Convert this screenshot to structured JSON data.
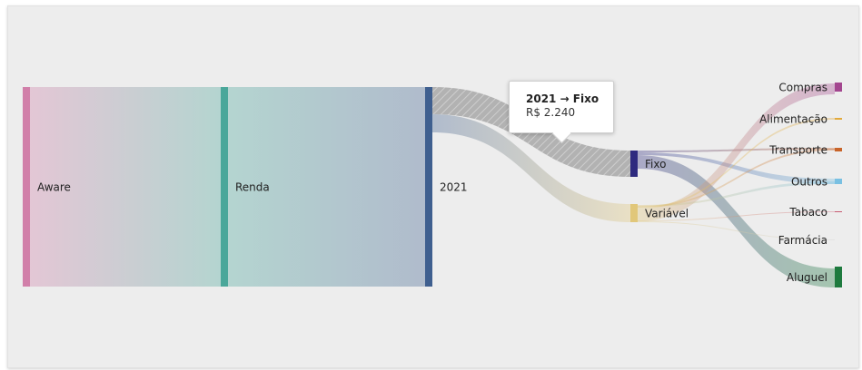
{
  "chart_data": {
    "type": "sankey",
    "nodes": [
      {
        "id": "aware",
        "label": "Aware",
        "color": "#d17fa9"
      },
      {
        "id": "renda",
        "label": "Renda",
        "color": "#4aa79a"
      },
      {
        "id": "y2021",
        "label": "2021",
        "color": "#3f5f8f"
      },
      {
        "id": "fixo",
        "label": "Fixo",
        "color": "#2e2a7f"
      },
      {
        "id": "variavel",
        "label": "Variável",
        "color": "#e1c77a"
      },
      {
        "id": "compras",
        "label": "Compras",
        "color": "#a3468f"
      },
      {
        "id": "alimentacao",
        "label": "Alimentação",
        "color": "#e2a93b"
      },
      {
        "id": "transporte",
        "label": "Transporte",
        "color": "#c8642a"
      },
      {
        "id": "outros",
        "label": "Outros",
        "color": "#79c0e2"
      },
      {
        "id": "tabaco",
        "label": "Tabaco",
        "color": "#c85a72"
      },
      {
        "id": "farmacia",
        "label": "Farmácia",
        "color": "#cfcfcf"
      },
      {
        "id": "aluguel",
        "label": "Aluguel",
        "color": "#1e7a3e"
      }
    ],
    "links": [
      {
        "source": "aware",
        "target": "renda",
        "value": 11000
      },
      {
        "source": "renda",
        "target": "y2021",
        "value": 11000
      },
      {
        "source": "y2021",
        "target": "fixo",
        "value": 2240
      },
      {
        "source": "y2021",
        "target": "variavel",
        "value": 1600
      },
      {
        "source": "fixo",
        "target": "aluguel",
        "value": 1900
      },
      {
        "source": "fixo",
        "target": "outros",
        "value": 240
      },
      {
        "source": "fixo",
        "target": "transporte",
        "value": 100
      },
      {
        "source": "variavel",
        "target": "compras",
        "value": 1000
      },
      {
        "source": "variavel",
        "target": "alimentacao",
        "value": 150
      },
      {
        "source": "variavel",
        "target": "outros",
        "value": 200
      },
      {
        "source": "variavel",
        "target": "transporte",
        "value": 150
      },
      {
        "source": "variavel",
        "target": "tabaco",
        "value": 50
      },
      {
        "source": "variavel",
        "target": "farmacia",
        "value": 50
      }
    ]
  },
  "tooltip": {
    "title": "2021 → Fixo",
    "value": "R$ 2.240"
  }
}
